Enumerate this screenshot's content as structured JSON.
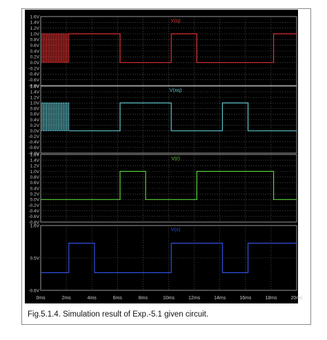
{
  "caption": "Fig.5.1.4. Simulation result of Exp.-5.1 given circuit.",
  "chart_data": [
    {
      "type": "line",
      "title": "V(q)",
      "color": "#e03030",
      "ylim": [
        -0.8,
        1.6
      ],
      "yticks": [
        "1.6V",
        "1.4V",
        "1.2V",
        "1.0V",
        "0.8V",
        "0.6V",
        "0.4V",
        "0.2V",
        "0.0V",
        "-0.2V",
        "-0.4V",
        "-0.6V",
        "-0.8V"
      ],
      "grid": true,
      "oscillation": {
        "x_start": 0,
        "x_end": 2.2,
        "low": 0,
        "high": 1
      },
      "x": [
        2.2,
        6.2,
        6.2,
        10.2,
        10.2,
        12.2,
        12.2,
        18.2,
        18.2,
        20.0
      ],
      "y": [
        1,
        1,
        0,
        0,
        1,
        1,
        0,
        0,
        1,
        1
      ]
    },
    {
      "type": "line",
      "title": "V(xq)",
      "color": "#5fc3cc",
      "ylim": [
        -0.8,
        1.6
      ],
      "yticks": [
        "1.6V",
        "1.4V",
        "1.2V",
        "1.0V",
        "0.8V",
        "0.6V",
        "0.4V",
        "0.2V",
        "0.0V",
        "-0.2V",
        "-0.4V",
        "-0.6V",
        "-0.8V"
      ],
      "grid": true,
      "oscillation": {
        "x_start": 0,
        "x_end": 2.2,
        "low": 0,
        "high": 1
      },
      "x": [
        2.2,
        6.2,
        6.2,
        10.2,
        10.2,
        14.2,
        14.2,
        16.2,
        16.2,
        20.0
      ],
      "y": [
        0,
        0,
        1,
        1,
        0,
        0,
        1,
        1,
        0,
        0
      ]
    },
    {
      "type": "line",
      "title": "V(r)",
      "color": "#5ad03a",
      "ylim": [
        -0.8,
        1.6
      ],
      "yticks": [
        "1.6V",
        "1.4V",
        "1.2V",
        "1.0V",
        "0.8V",
        "0.6V",
        "0.4V",
        "0.2V",
        "0.0V",
        "-0.2V",
        "-0.4V",
        "-0.6V",
        "-0.8V"
      ],
      "grid": true,
      "x": [
        0,
        6.2,
        6.2,
        8.2,
        8.2,
        12.2,
        12.2,
        18.2,
        18.2,
        20.0
      ],
      "y": [
        0,
        0,
        1,
        1,
        0,
        0,
        1,
        1,
        0,
        0
      ]
    },
    {
      "type": "line",
      "title": "V(s)",
      "color": "#3050e0",
      "ylim": [
        -0.6,
        1.6
      ],
      "yticks": [
        "1.6V",
        "0.5V",
        "-0.6V"
      ],
      "tick_values": [
        1.6,
        0.5,
        -0.6
      ],
      "grid": true,
      "x": [
        0,
        2.2,
        2.2,
        4.2,
        4.2,
        10.2,
        10.2,
        14.2,
        14.2,
        16.2,
        16.2,
        20.0
      ],
      "y": [
        0,
        0,
        1,
        1,
        0,
        0,
        1,
        1,
        0,
        0,
        1,
        1
      ]
    }
  ],
  "x_axis": {
    "xlim": [
      0,
      20
    ],
    "ticks": [
      "0ms",
      "2ms",
      "4ms",
      "6ms",
      "8ms",
      "10ms",
      "12ms",
      "14ms",
      "16ms",
      "18ms",
      "20ms"
    ],
    "tick_values": [
      0,
      2,
      4,
      6,
      8,
      10,
      12,
      14,
      16,
      18,
      20
    ]
  }
}
